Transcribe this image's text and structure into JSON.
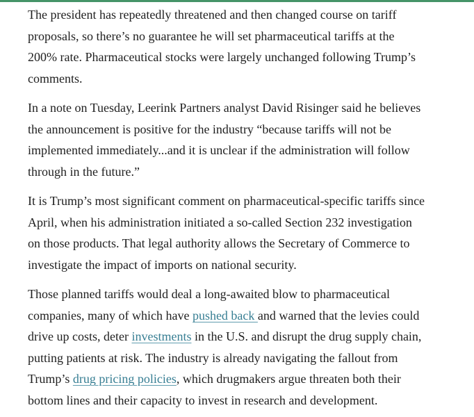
{
  "meta": {
    "accent_bar_color": "#459468",
    "text_color": "#1f1f1f",
    "link_color": "#377e93",
    "background_color": "#ffffff"
  },
  "article": {
    "paragraphs": [
      {
        "segments": [
          {
            "type": "text",
            "text": "The president has repeatedly threatened and then changed course on tariff\nproposals, so there’s no guarantee he will set pharmaceutical tariffs at the\n200% rate. Pharmaceutical stocks were largely unchanged following Trump’s\ncomments."
          }
        ]
      },
      {
        "segments": [
          {
            "type": "text",
            "text": "In a note on Tuesday, Leerink Partners analyst David Risinger said he believes\nthe announcement is positive for the industry “because tariffs will not be\nimplemented immediately...and it is unclear if the administration will follow\nthrough in the future.”"
          }
        ]
      },
      {
        "segments": [
          {
            "type": "text",
            "text": "It is Trump’s most significant comment on pharmaceutical-specific tariffs since\nApril, when his administration initiated a so-called Section 232 investigation\non those products. That legal authority allows the Secretary of Commerce to\ninvestigate the impact of imports on national security."
          }
        ]
      },
      {
        "segments": [
          {
            "type": "text",
            "text": "Those planned tariffs would deal a long-awaited blow to pharmaceutical\ncompanies, many of which have "
          },
          {
            "type": "link",
            "text": "pushed back "
          },
          {
            "type": "text",
            "text": "and warned that the levies could\ndrive up costs, deter "
          },
          {
            "type": "link",
            "text": "investments"
          },
          {
            "type": "text",
            "text": " in the U.S. and disrupt the drug supply chain,\nputting patients at risk. The industry is already navigating the fallout from\nTrump’s "
          },
          {
            "type": "link",
            "text": "drug pricing policies"
          },
          {
            "type": "text",
            "text": ", which drugmakers argue threaten both their\nbottom lines and their capacity to invest in research and development."
          }
        ]
      }
    ]
  }
}
